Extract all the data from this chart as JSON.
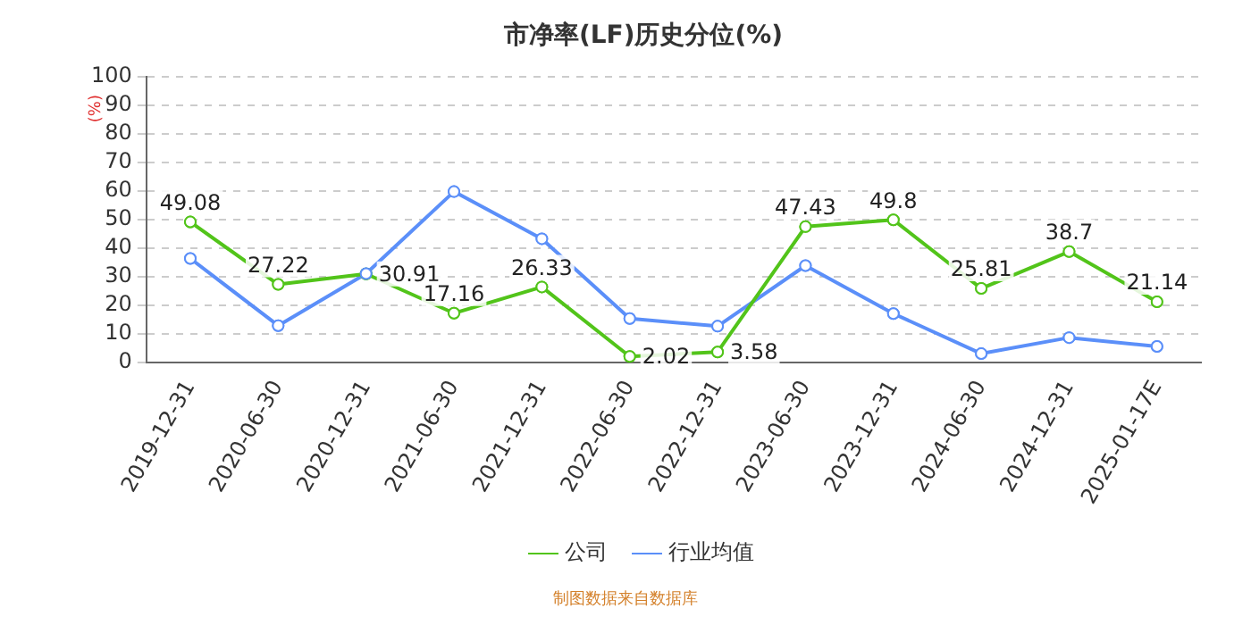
{
  "chart_data": {
    "type": "line",
    "title": "市净率(LF)历史分位(%)",
    "ylabel": "(%)",
    "categories": [
      "2019-12-31",
      "2020-06-30",
      "2020-12-31",
      "2021-06-30",
      "2021-12-31",
      "2022-06-30",
      "2022-12-31",
      "2023-06-30",
      "2023-12-31",
      "2024-06-30",
      "2024-12-31",
      "2025-01-17E"
    ],
    "series": [
      {
        "name": "公司",
        "color": "#52c41a",
        "values": [
          49.08,
          27.22,
          30.91,
          17.16,
          26.33,
          2.02,
          3.58,
          47.43,
          49.8,
          25.81,
          38.7,
          21.14
        ],
        "value_labels": [
          "49.08",
          "27.22",
          "30.91",
          "17.16",
          "26.33",
          "2.02",
          "3.58",
          "47.43",
          "49.8",
          "25.81",
          "38.7",
          "21.14"
        ]
      },
      {
        "name": "行业均值",
        "color": "#5b8ff9",
        "values": [
          36.3,
          12.8,
          31,
          59.7,
          43.2,
          15.3,
          12.6,
          33.8,
          17,
          3,
          8.6,
          5.5
        ]
      }
    ],
    "ylim": [
      0,
      100
    ],
    "yticks": [
      0,
      10,
      20,
      30,
      40,
      50,
      60,
      70,
      80,
      90,
      100
    ],
    "grid": "y",
    "legend": "bottom",
    "marker": "circle",
    "line_style": "solid",
    "annotations": [
      "制图数据来自数据库"
    ]
  }
}
